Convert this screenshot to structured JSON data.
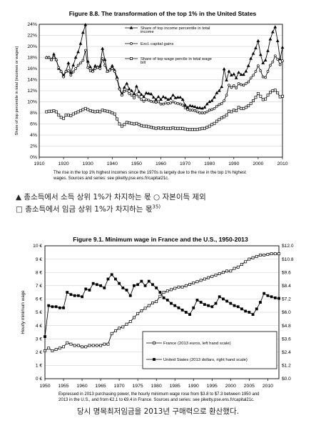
{
  "chart_data": [
    {
      "type": "line",
      "title": "Figure 8.8. The transformation of the top 1% in the United States",
      "ylabel": "Share of top percentile in total (incomes or wages)",
      "xlim": [
        1910,
        2010
      ],
      "ylim": [
        0,
        24
      ],
      "x_ticks": [
        "1910",
        "1920",
        "1930",
        "1940",
        "1950",
        "1960",
        "1970",
        "1980",
        "1990",
        "2000",
        "2010"
      ],
      "y_ticks": [
        "0%",
        "2%",
        "4%",
        "6%",
        "8%",
        "10%",
        "12%",
        "14%",
        "16%",
        "18%",
        "20%",
        "22%",
        "24%"
      ],
      "caption": [
        "The rise in the top 1% highest incomes since the 1970s is largely due to the rise in the top 1% highest",
        "wages. Sources and series: see piketty.pse.ens.fr/capital21c."
      ],
      "legend_position": "top-right",
      "series": [
        {
          "name": "Share of top income percentile in total income",
          "legend_lines": [
            "Share of top income percentile in total",
            "income"
          ],
          "marker": "triangle-filled",
          "x": [
            1913,
            1914,
            1915,
            1916,
            1917,
            1918,
            1919,
            1920,
            1921,
            1922,
            1923,
            1924,
            1925,
            1926,
            1927,
            1928,
            1929,
            1930,
            1931,
            1932,
            1933,
            1934,
            1935,
            1936,
            1937,
            1938,
            1939,
            1940,
            1941,
            1942,
            1943,
            1944,
            1945,
            1946,
            1947,
            1948,
            1949,
            1950,
            1951,
            1952,
            1953,
            1954,
            1955,
            1956,
            1957,
            1958,
            1959,
            1960,
            1961,
            1962,
            1963,
            1964,
            1965,
            1966,
            1967,
            1968,
            1969,
            1970,
            1971,
            1972,
            1973,
            1974,
            1975,
            1976,
            1977,
            1978,
            1979,
            1980,
            1981,
            1982,
            1983,
            1984,
            1985,
            1986,
            1987,
            1988,
            1989,
            1990,
            1991,
            1992,
            1993,
            1994,
            1995,
            1996,
            1997,
            1998,
            1999,
            2000,
            2001,
            2002,
            2003,
            2004,
            2005,
            2006,
            2007,
            2008,
            2009,
            2010
          ],
          "y": [
            18.0,
            18.0,
            17.6,
            18.6,
            17.6,
            16.0,
            15.5,
            14.8,
            15.5,
            17.0,
            15.3,
            16.6,
            18.0,
            19.0,
            20.5,
            22.5,
            23.9,
            17.3,
            16.3,
            15.6,
            16.5,
            16.3,
            16.5,
            19.6,
            17.6,
            15.5,
            15.8,
            16.5,
            15.7,
            14.4,
            12.5,
            11.4,
            12.6,
            13.3,
            12.3,
            12.0,
            11.4,
            12.8,
            11.8,
            11.3,
            10.9,
            11.6,
            11.5,
            11.4,
            10.8,
            10.4,
            10.9,
            10.4,
            10.9,
            10.7,
            10.4,
            10.6,
            11.2,
            10.7,
            10.8,
            10.8,
            10.4,
            9.4,
            9.0,
            9.3,
            9.2,
            9.1,
            8.9,
            8.9,
            8.8,
            9.0,
            9.6,
            10.0,
            10.2,
            10.8,
            11.6,
            12.0,
            12.7,
            15.9,
            13.9,
            15.5,
            14.8,
            15.0,
            14.3,
            15.3,
            14.9,
            14.9,
            15.5,
            16.5,
            17.8,
            18.7,
            19.7,
            21.0,
            18.5,
            17.0,
            17.5,
            19.2,
            21.3,
            22.6,
            23.5,
            21.0,
            17.7,
            19.8
          ]
        },
        {
          "name": "Excl. capital gains",
          "legend_lines": [
            "Excl. capital gains"
          ],
          "marker": "circle-open",
          "x": [
            1913,
            1914,
            1915,
            1916,
            1917,
            1918,
            1919,
            1920,
            1921,
            1922,
            1923,
            1924,
            1925,
            1926,
            1927,
            1928,
            1929,
            1930,
            1931,
            1932,
            1933,
            1934,
            1935,
            1936,
            1937,
            1938,
            1939,
            1940,
            1941,
            1942,
            1943,
            1944,
            1945,
            1946,
            1947,
            1948,
            1949,
            1950,
            1951,
            1952,
            1953,
            1954,
            1955,
            1956,
            1957,
            1958,
            1959,
            1960,
            1961,
            1962,
            1963,
            1964,
            1965,
            1966,
            1967,
            1968,
            1969,
            1970,
            1971,
            1972,
            1973,
            1974,
            1975,
            1976,
            1977,
            1978,
            1979,
            1980,
            1981,
            1982,
            1983,
            1984,
            1985,
            1986,
            1987,
            1988,
            1989,
            1990,
            1991,
            1992,
            1993,
            1994,
            1995,
            1996,
            1997,
            1998,
            1999,
            2000,
            2001,
            2002,
            2003,
            2004,
            2005,
            2006,
            2007,
            2008,
            2009,
            2010
          ],
          "y": [
            18.0,
            18.0,
            17.6,
            18.0,
            17.6,
            16.2,
            15.5,
            14.5,
            15.5,
            15.6,
            14.8,
            15.4,
            16.0,
            16.6,
            17.0,
            17.5,
            19.3,
            16.2,
            15.6,
            15.5,
            16.0,
            16.2,
            16.0,
            17.8,
            16.6,
            15.5,
            15.7,
            16.0,
            15.5,
            14.1,
            12.3,
            11.2,
            11.9,
            12.1,
            11.5,
            11.2,
            10.7,
            11.3,
            10.9,
            10.4,
            10.1,
            10.4,
            10.3,
            10.1,
            10.0,
            9.9,
            10.0,
            9.6,
            9.6,
            9.8,
            9.7,
            9.8,
            10.0,
            9.8,
            9.7,
            9.6,
            9.4,
            8.9,
            8.6,
            8.5,
            8.5,
            8.4,
            8.2,
            8.0,
            8.0,
            8.0,
            8.2,
            8.5,
            8.6,
            8.8,
            9.2,
            9.5,
            9.7,
            10.2,
            11.2,
            13.0,
            12.6,
            12.9,
            12.5,
            13.3,
            13.1,
            13.0,
            13.3,
            13.6,
            14.3,
            14.8,
            15.5,
            16.5,
            15.6,
            14.5,
            14.4,
            15.5,
            16.6,
            17.2,
            18.3,
            17.7,
            16.7,
            17.4
          ]
        },
        {
          "name": "Share of top wage percile in total wage bill",
          "legend_lines": [
            "Share of top wage percile in total wage",
            "bill"
          ],
          "marker": "square-open",
          "x": [
            1913,
            1914,
            1915,
            1916,
            1917,
            1918,
            1919,
            1920,
            1921,
            1922,
            1923,
            1924,
            1925,
            1926,
            1927,
            1928,
            1929,
            1930,
            1931,
            1932,
            1933,
            1934,
            1935,
            1936,
            1937,
            1938,
            1939,
            1940,
            1941,
            1942,
            1943,
            1944,
            1945,
            1946,
            1947,
            1948,
            1949,
            1950,
            1951,
            1952,
            1953,
            1954,
            1955,
            1956,
            1957,
            1958,
            1959,
            1960,
            1961,
            1962,
            1963,
            1964,
            1965,
            1966,
            1967,
            1968,
            1969,
            1970,
            1971,
            1972,
            1973,
            1974,
            1975,
            1976,
            1977,
            1978,
            1979,
            1980,
            1981,
            1982,
            1983,
            1984,
            1985,
            1986,
            1987,
            1988,
            1989,
            1990,
            1991,
            1992,
            1993,
            1994,
            1995,
            1996,
            1997,
            1998,
            1999,
            2000,
            2001,
            2002,
            2003,
            2004,
            2005,
            2006,
            2007,
            2008,
            2009,
            2010
          ],
          "y": [
            8.2,
            8.3,
            8.3,
            8.4,
            8.2,
            7.6,
            7.2,
            7.0,
            7.6,
            7.6,
            7.5,
            7.8,
            8.0,
            8.2,
            8.4,
            8.6,
            8.8,
            8.6,
            8.4,
            8.3,
            8.2,
            8.3,
            8.2,
            8.5,
            8.4,
            8.3,
            8.2,
            8.0,
            7.8,
            6.9,
            6.0,
            5.6,
            5.9,
            6.3,
            6.2,
            6.1,
            6.0,
            6.1,
            5.9,
            5.7,
            5.6,
            5.6,
            5.5,
            5.4,
            5.3,
            5.2,
            5.3,
            5.2,
            5.3,
            5.2,
            5.2,
            5.2,
            5.3,
            5.2,
            5.2,
            5.2,
            5.2,
            5.1,
            5.0,
            5.0,
            5.0,
            5.0,
            5.0,
            5.1,
            5.2,
            5.2,
            5.4,
            5.6,
            5.9,
            6.1,
            6.5,
            6.8,
            7.1,
            7.3,
            7.6,
            8.3,
            8.2,
            8.5,
            8.4,
            9.0,
            8.8,
            8.8,
            9.0,
            9.3,
            9.7,
            10.2,
            10.8,
            11.5,
            11.0,
            10.4,
            10.5,
            11.2,
            11.7,
            12.0,
            12.1,
            11.6,
            10.9,
            11.0
          ]
        }
      ]
    },
    {
      "type": "line",
      "title": "Figure 9.1. Minimum wage in France and the U.S., 1950-2013",
      "ylabel": "Hourly minimum wage",
      "xlim": [
        1950,
        2013
      ],
      "ylim": [
        0,
        10
      ],
      "y2lim": [
        0,
        12
      ],
      "x_ticks": [
        "1950",
        "1955",
        "1960",
        "1965",
        "1970",
        "1975",
        "1980",
        "1985",
        "1990",
        "1995",
        "2000",
        "2005",
        "2010"
      ],
      "y_ticks": [
        "0 €",
        "1 €",
        "2 €",
        "3 €",
        "4 €",
        "5 €",
        "6 €",
        "7 €",
        "8 €",
        "9 €",
        "10 €"
      ],
      "y2_ticks": [
        "$0.0",
        "$1.2",
        "$2.4",
        "$3.6",
        "$4.8",
        "$6.0",
        "$7.2",
        "$8.4",
        "$9.6",
        "$10.8",
        "$12.0"
      ],
      "caption": [
        "Expressed in 2013 purchasing power, the hourly minimum wage rose from $3.8 to $7.3 between 1950 and",
        "2013 in the U.S., and from €2.1 to €9.4 in France. Sources and series: see piketty.pse.ens.fr/capital21c."
      ],
      "legend_position": "bottom-right",
      "series": [
        {
          "name": "France (2013 euros, left hand scale)",
          "axis": "left",
          "marker": "square-open",
          "x": [
            1950,
            1951,
            1952,
            1953,
            1954,
            1955,
            1956,
            1957,
            1958,
            1959,
            1960,
            1961,
            1962,
            1963,
            1964,
            1965,
            1966,
            1967,
            1968,
            1969,
            1970,
            1971,
            1972,
            1973,
            1974,
            1975,
            1976,
            1977,
            1978,
            1979,
            1980,
            1981,
            1982,
            1983,
            1984,
            1985,
            1986,
            1987,
            1988,
            1989,
            1990,
            1991,
            1992,
            1993,
            1994,
            1995,
            1996,
            1997,
            1998,
            1999,
            2000,
            2001,
            2002,
            2003,
            2004,
            2005,
            2006,
            2007,
            2008,
            2009,
            2010,
            2011,
            2012,
            2013
          ],
          "y": [
            2.1,
            2.3,
            2.1,
            2.2,
            2.3,
            2.4,
            2.7,
            2.6,
            2.5,
            2.5,
            2.4,
            2.4,
            2.5,
            2.5,
            2.5,
            2.5,
            2.6,
            2.6,
            3.4,
            3.6,
            3.8,
            3.9,
            4.1,
            4.3,
            4.6,
            4.9,
            5.1,
            5.3,
            5.5,
            5.7,
            5.8,
            6.2,
            6.5,
            6.6,
            6.7,
            6.8,
            6.9,
            6.9,
            7.0,
            7.1,
            7.2,
            7.3,
            7.4,
            7.5,
            7.6,
            7.7,
            7.8,
            7.9,
            8.0,
            8.1,
            8.1,
            8.3,
            8.4,
            8.6,
            8.8,
            9.0,
            9.1,
            9.2,
            9.3,
            9.3,
            9.35,
            9.4,
            9.4,
            9.4
          ]
        },
        {
          "name": "United States (2013 dollars, right hand scale)",
          "axis": "right",
          "marker": "square-filled",
          "x": [
            1950,
            1951,
            1952,
            1953,
            1954,
            1955,
            1956,
            1957,
            1958,
            1959,
            1960,
            1961,
            1962,
            1963,
            1964,
            1965,
            1966,
            1967,
            1968,
            1969,
            1970,
            1971,
            1972,
            1973,
            1974,
            1975,
            1976,
            1977,
            1978,
            1979,
            1980,
            1981,
            1982,
            1983,
            1984,
            1985,
            1986,
            1987,
            1988,
            1989,
            1990,
            1991,
            1992,
            1993,
            1994,
            1995,
            1996,
            1997,
            1998,
            1999,
            2000,
            2001,
            2002,
            2003,
            2004,
            2005,
            2006,
            2007,
            2008,
            2009,
            2010,
            2011,
            2012,
            2013
          ],
          "y": [
            3.8,
            6.6,
            6.5,
            6.5,
            6.4,
            6.4,
            7.8,
            7.6,
            7.5,
            7.5,
            7.4,
            8.1,
            8.0,
            8.6,
            8.5,
            8.4,
            8.2,
            9.0,
            9.4,
            9.0,
            8.6,
            8.2,
            8.0,
            7.5,
            8.4,
            8.5,
            8.8,
            8.4,
            8.8,
            8.5,
            8.2,
            7.8,
            7.3,
            7.1,
            6.8,
            6.6,
            6.4,
            6.2,
            6.0,
            5.8,
            6.4,
            7.1,
            6.9,
            6.7,
            6.6,
            6.5,
            6.8,
            7.4,
            7.2,
            7.0,
            6.8,
            6.6,
            6.5,
            6.3,
            6.1,
            6.0,
            5.8,
            6.3,
            6.9,
            7.7,
            7.5,
            7.4,
            7.3,
            7.25
          ]
        }
      ]
    }
  ],
  "captions_kr": {
    "legend_1": "▲ 총소득에서 소득 상위 1%가 차지하는 몫 ○ 자본이득 제외",
    "legend_2": "□ 총소득에서 임금 상위 1%가 차지하는 몫",
    "legend_2_sup": "35)",
    "bottom_note": "당시 명목최저임금을 2013년 구매력으로 환산했다."
  }
}
